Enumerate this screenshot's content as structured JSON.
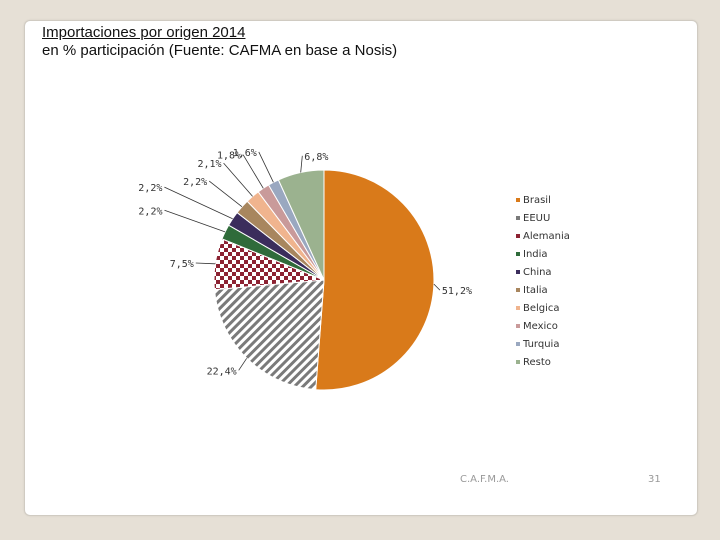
{
  "slide": {
    "title_line1": "Importaciones por origen 2014",
    "title_line2": "en % participación (Fuente: CAFMA en base a Nosis)",
    "footer": "C.A.F.M.A.",
    "page_number": "31"
  },
  "chart_data": {
    "type": "pie",
    "title": "",
    "legend_position": "right",
    "slices": [
      {
        "name": "Brasil",
        "value": 51.2,
        "label": "51,2%",
        "color": "#d97a1a",
        "pattern": "solid"
      },
      {
        "name": "EEUU",
        "value": 22.4,
        "label": "22,4%",
        "color": "#7a7a7a",
        "pattern": "diagonal-stripes"
      },
      {
        "name": "Alemania",
        "value": 7.5,
        "label": "7,5%",
        "color": "#8c2232",
        "pattern": "checkered"
      },
      {
        "name": "India",
        "value": 2.2,
        "label": "2,2%",
        "color": "#2f6b3a",
        "pattern": "solid"
      },
      {
        "name": "China",
        "value": 2.2,
        "label": "2,2%",
        "color": "#3b2d5c",
        "pattern": "solid"
      },
      {
        "name": "Italia",
        "value": 2.2,
        "label": "2,2%",
        "color": "#a8865e",
        "pattern": "solid"
      },
      {
        "name": "Belgica",
        "value": 2.1,
        "label": "2,1%",
        "color": "#f0b48e",
        "pattern": "solid"
      },
      {
        "name": "Mexico",
        "value": 1.8,
        "label": "1,8%",
        "color": "#c99a9a",
        "pattern": "solid"
      },
      {
        "name": "Turquia",
        "value": 1.6,
        "label": "1,6%",
        "color": "#9aa8c0",
        "pattern": "solid"
      },
      {
        "name": "Resto",
        "value": 6.8,
        "label": "6,8%",
        "color": "#9bb28f",
        "pattern": "solid"
      }
    ]
  }
}
